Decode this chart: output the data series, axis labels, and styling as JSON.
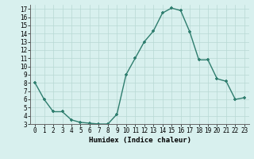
{
  "x": [
    0,
    1,
    2,
    3,
    4,
    5,
    6,
    7,
    8,
    9,
    10,
    11,
    12,
    13,
    14,
    15,
    16,
    17,
    18,
    19,
    20,
    21,
    22,
    23
  ],
  "y": [
    8,
    6,
    4.5,
    4.5,
    3.5,
    3.2,
    3.1,
    3.0,
    3.0,
    4.2,
    9.0,
    11.0,
    13.0,
    14.3,
    16.5,
    17.1,
    16.8,
    14.2,
    10.8,
    10.8,
    8.5,
    8.2,
    6.0,
    6.2
  ],
  "line_color": "#2e7d6e",
  "marker": "+",
  "marker_size": 3.5,
  "background_color": "#d8f0ee",
  "grid_color": "#b8d8d4",
  "xlabel": "Humidex (Indice chaleur)",
  "ylim": [
    3,
    17.5
  ],
  "xlim": [
    -0.5,
    23.5
  ],
  "yticks": [
    3,
    4,
    5,
    6,
    7,
    8,
    9,
    10,
    11,
    12,
    13,
    14,
    15,
    16,
    17
  ],
  "xticks": [
    0,
    1,
    2,
    3,
    4,
    5,
    6,
    7,
    8,
    9,
    10,
    11,
    12,
    13,
    14,
    15,
    16,
    17,
    18,
    19,
    20,
    21,
    22,
    23
  ],
  "tick_fontsize": 5.5,
  "xlabel_fontsize": 6.5,
  "line_width": 1.0,
  "marker_color": "#2e7d6e"
}
